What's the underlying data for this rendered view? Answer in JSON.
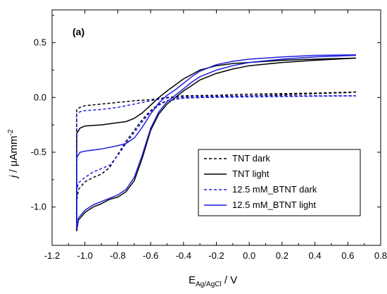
{
  "chart_data": {
    "type": "line",
    "panel_label": "(a)",
    "xlabel": {
      "main": "E",
      "sub": "Ag/AgCl",
      "suffix": " / V"
    },
    "ylabel": {
      "prefix": "j",
      "mid": " / μAmm",
      "sup": "-2"
    },
    "xlim": [
      -1.2,
      0.8
    ],
    "ylim": [
      -1.35,
      0.8
    ],
    "xticks": [
      -1.2,
      -1.0,
      -0.8,
      -0.6,
      -0.4,
      -0.2,
      0.0,
      0.2,
      0.4,
      0.6,
      0.8
    ],
    "xtick_labels": [
      "-1.2",
      "-1.0",
      "-0.8",
      "-0.6",
      "-0.4",
      "-0.2",
      "0.0",
      "0.2",
      "0.4",
      "0.6",
      "0.8"
    ],
    "yticks": [
      -1.0,
      -0.5,
      0.0,
      0.5
    ],
    "ytick_labels": [
      "-1.0",
      "-0.5",
      "0.0",
      "0.5"
    ],
    "grid": false,
    "legend_position": "lower-right",
    "series": [
      {
        "name": "TNT dark",
        "color": "#000000",
        "dash": "dashed",
        "forward": [
          [
            -1.05,
            -1.2
          ],
          [
            -1.05,
            -0.95
          ],
          [
            -1.04,
            -0.84
          ],
          [
            -1.0,
            -0.77
          ],
          [
            -0.95,
            -0.73
          ],
          [
            -0.9,
            -0.7
          ],
          [
            -0.85,
            -0.64
          ],
          [
            -0.8,
            -0.52
          ],
          [
            -0.75,
            -0.4
          ],
          [
            -0.7,
            -0.3
          ],
          [
            -0.65,
            -0.2
          ],
          [
            -0.6,
            -0.12
          ],
          [
            -0.55,
            -0.06
          ],
          [
            -0.5,
            -0.03
          ],
          [
            -0.45,
            -0.015
          ],
          [
            -0.4,
            -0.005
          ],
          [
            -0.3,
            0.0
          ],
          [
            -0.2,
            0.005
          ],
          [
            0.0,
            0.015
          ],
          [
            0.2,
            0.025
          ],
          [
            0.4,
            0.035
          ],
          [
            0.6,
            0.045
          ],
          [
            0.65,
            0.05
          ]
        ],
        "backward": [
          [
            0.65,
            0.05
          ],
          [
            0.4,
            0.04
          ],
          [
            0.2,
            0.035
          ],
          [
            0.0,
            0.03
          ],
          [
            -0.2,
            0.02
          ],
          [
            -0.4,
            0.015
          ],
          [
            -0.5,
            0.0
          ],
          [
            -0.55,
            -0.01
          ],
          [
            -0.6,
            -0.02
          ],
          [
            -0.7,
            -0.03
          ],
          [
            -0.8,
            -0.045
          ],
          [
            -0.9,
            -0.06
          ],
          [
            -1.0,
            -0.075
          ],
          [
            -1.03,
            -0.09
          ],
          [
            -1.05,
            -0.11
          ],
          [
            -1.05,
            -1.2
          ]
        ]
      },
      {
        "name": "TNT light",
        "color": "#000000",
        "dash": "solid",
        "forward": [
          [
            -1.05,
            -1.22
          ],
          [
            -1.04,
            -1.12
          ],
          [
            -1.0,
            -1.05
          ],
          [
            -0.95,
            -1.0
          ],
          [
            -0.9,
            -0.97
          ],
          [
            -0.85,
            -0.93
          ],
          [
            -0.8,
            -0.91
          ],
          [
            -0.75,
            -0.86
          ],
          [
            -0.7,
            -0.76
          ],
          [
            -0.65,
            -0.55
          ],
          [
            -0.6,
            -0.3
          ],
          [
            -0.55,
            -0.15
          ],
          [
            -0.5,
            -0.06
          ],
          [
            -0.45,
            0.0
          ],
          [
            -0.4,
            0.06
          ],
          [
            -0.35,
            0.11
          ],
          [
            -0.3,
            0.16
          ],
          [
            -0.2,
            0.22
          ],
          [
            -0.1,
            0.26
          ],
          [
            0.0,
            0.29
          ],
          [
            0.2,
            0.32
          ],
          [
            0.4,
            0.34
          ],
          [
            0.65,
            0.36
          ]
        ],
        "backward": [
          [
            0.65,
            0.36
          ],
          [
            0.4,
            0.35
          ],
          [
            0.2,
            0.34
          ],
          [
            0.0,
            0.32
          ],
          [
            -0.1,
            0.31
          ],
          [
            -0.2,
            0.29
          ],
          [
            -0.3,
            0.25
          ],
          [
            -0.4,
            0.17
          ],
          [
            -0.5,
            0.06
          ],
          [
            -0.55,
            0.0
          ],
          [
            -0.6,
            -0.07
          ],
          [
            -0.65,
            -0.14
          ],
          [
            -0.7,
            -0.19
          ],
          [
            -0.75,
            -0.22
          ],
          [
            -0.8,
            -0.23
          ],
          [
            -0.9,
            -0.25
          ],
          [
            -1.0,
            -0.26
          ],
          [
            -1.03,
            -0.28
          ],
          [
            -1.05,
            -0.33
          ],
          [
            -1.05,
            -1.22
          ]
        ]
      },
      {
        "name": "12.5 mM_BTNT dark",
        "color": "#1f1fe0",
        "dash": "dashed",
        "forward": [
          [
            -1.05,
            -1.18
          ],
          [
            -1.05,
            -0.85
          ],
          [
            -1.04,
            -0.78
          ],
          [
            -1.0,
            -0.73
          ],
          [
            -0.95,
            -0.68
          ],
          [
            -0.9,
            -0.65
          ],
          [
            -0.85,
            -0.62
          ],
          [
            -0.8,
            -0.53
          ],
          [
            -0.75,
            -0.42
          ],
          [
            -0.7,
            -0.32
          ],
          [
            -0.65,
            -0.22
          ],
          [
            -0.6,
            -0.13
          ],
          [
            -0.55,
            -0.07
          ],
          [
            -0.5,
            -0.03
          ],
          [
            -0.4,
            -0.005
          ],
          [
            -0.3,
            0.0
          ],
          [
            0.0,
            0.005
          ],
          [
            0.3,
            0.01
          ],
          [
            0.65,
            0.015
          ]
        ],
        "backward": [
          [
            0.65,
            0.015
          ],
          [
            0.3,
            0.015
          ],
          [
            0.0,
            0.015
          ],
          [
            -0.3,
            0.01
          ],
          [
            -0.4,
            0.005
          ],
          [
            -0.5,
            -0.005
          ],
          [
            -0.6,
            -0.03
          ],
          [
            -0.7,
            -0.06
          ],
          [
            -0.8,
            -0.09
          ],
          [
            -0.9,
            -0.11
          ],
          [
            -1.0,
            -0.12
          ],
          [
            -1.03,
            -0.13
          ],
          [
            -1.05,
            -0.15
          ],
          [
            -1.05,
            -1.18
          ]
        ]
      },
      {
        "name": "12.5 mM_BTNT light",
        "color": "#1f1fe0",
        "dash": "solid",
        "forward": [
          [
            -1.05,
            -1.2
          ],
          [
            -1.04,
            -1.1
          ],
          [
            -1.0,
            -1.03
          ],
          [
            -0.95,
            -0.98
          ],
          [
            -0.9,
            -0.95
          ],
          [
            -0.85,
            -0.92
          ],
          [
            -0.8,
            -0.89
          ],
          [
            -0.75,
            -0.84
          ],
          [
            -0.7,
            -0.73
          ],
          [
            -0.65,
            -0.52
          ],
          [
            -0.6,
            -0.28
          ],
          [
            -0.55,
            -0.13
          ],
          [
            -0.5,
            -0.04
          ],
          [
            -0.45,
            0.02
          ],
          [
            -0.4,
            0.08
          ],
          [
            -0.35,
            0.14
          ],
          [
            -0.3,
            0.19
          ],
          [
            -0.2,
            0.25
          ],
          [
            -0.1,
            0.29
          ],
          [
            0.0,
            0.32
          ],
          [
            0.2,
            0.35
          ],
          [
            0.4,
            0.37
          ],
          [
            0.65,
            0.385
          ]
        ],
        "backward": [
          [
            0.65,
            0.39
          ],
          [
            0.4,
            0.385
          ],
          [
            0.2,
            0.37
          ],
          [
            0.0,
            0.35
          ],
          [
            -0.1,
            0.33
          ],
          [
            -0.2,
            0.3
          ],
          [
            -0.3,
            0.24
          ],
          [
            -0.35,
            0.19
          ],
          [
            -0.4,
            0.13
          ],
          [
            -0.45,
            0.07
          ],
          [
            -0.5,
            0.02
          ],
          [
            -0.55,
            -0.05
          ],
          [
            -0.6,
            -0.15
          ],
          [
            -0.65,
            -0.27
          ],
          [
            -0.7,
            -0.37
          ],
          [
            -0.75,
            -0.42
          ],
          [
            -0.8,
            -0.44
          ],
          [
            -0.9,
            -0.47
          ],
          [
            -1.0,
            -0.49
          ],
          [
            -1.03,
            -0.5
          ],
          [
            -1.05,
            -0.55
          ],
          [
            -1.05,
            -1.2
          ]
        ]
      }
    ]
  }
}
